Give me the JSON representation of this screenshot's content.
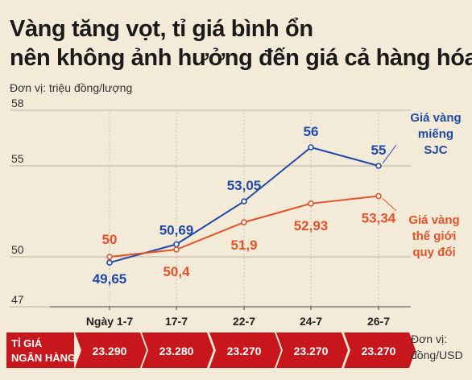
{
  "title_line1": "Vàng tăng vọt, tỉ giá bình ổn",
  "title_line2": "nên không ảnh hưởng đến giá cả hàng hóa",
  "unit_top": "Đơn vị: triệu đồng/lượng",
  "unit_bottom_line1": "Đơn vị:",
  "unit_bottom_line2": "đồng/USD",
  "colors": {
    "sjc": "#1f4aa8",
    "world": "#e2532a",
    "band": "#c8161d",
    "background": "#f3ead8"
  },
  "chart_data": {
    "type": "line",
    "categories": [
      "Ngày 1-7",
      "17-7",
      "22-7",
      "24-7",
      "26-7"
    ],
    "yticks": [
      "58",
      "55",
      "50",
      "47"
    ],
    "series": [
      {
        "name": "Giá vàng miếng SJC",
        "values": [
          49.65,
          50.69,
          53.05,
          56,
          55
        ],
        "labels": [
          "49,65",
          "50,69",
          "53,05",
          "56",
          "55"
        ]
      },
      {
        "name": "Giá vàng thế giới quy đổi",
        "values": [
          50,
          50.4,
          51.9,
          52.93,
          53.34
        ],
        "labels": [
          "50",
          "50,4",
          "51,9",
          "52,93",
          "53,34"
        ]
      }
    ],
    "legend": {
      "sjc": [
        "Giá vàng",
        "miếng",
        "SJC"
      ],
      "world": [
        "Giá vàng",
        "thế giới",
        "quy đổi"
      ]
    }
  },
  "exchange_rate": {
    "label_line1": "TỈ GIÁ",
    "label_line2": "NGÂN HÀNG",
    "values": [
      "23.290",
      "23.280",
      "23.270",
      "23.270",
      "23.270"
    ]
  }
}
